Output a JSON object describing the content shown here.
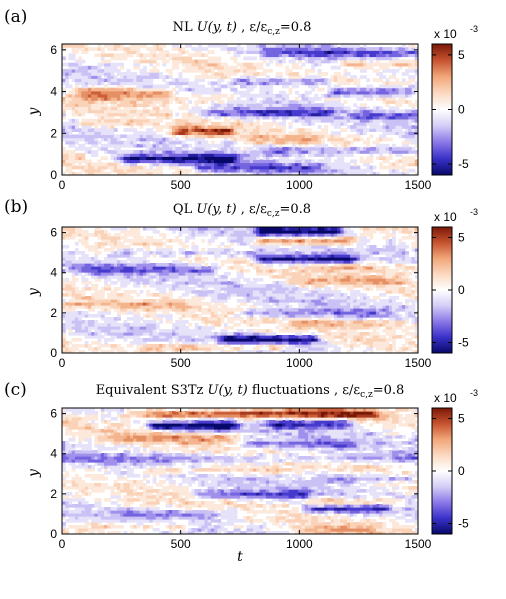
{
  "figure": {
    "xlabel": "t",
    "ylabel": "y",
    "colorbar": {
      "multiplier": "x 10",
      "exponent": "-3",
      "ticks": [
        5,
        0,
        -5
      ],
      "tick_labels": [
        "5",
        "0",
        "-5"
      ],
      "range": [
        -6,
        6
      ],
      "colormap": [
        "#08086b",
        "#3a31c8",
        "#8b78e8",
        "#d4cdf7",
        "#ffffff",
        "#fbd9c1",
        "#f1a779",
        "#c6532f",
        "#7a1808"
      ]
    }
  },
  "panels": [
    {
      "label": "(a)",
      "title": "NL   U(y, t)  ,  ε/ε_{c,z}=0.8",
      "title_parts": [
        "NL   ",
        "U(y, t)",
        "  ,  ε/ε",
        "c,z",
        "=0.8"
      ]
    },
    {
      "label": "(b)",
      "title": "QL   U(y, t)  ,  ε/ε_{c,z}=0.8",
      "title_parts": [
        "QL   ",
        "U(y, t)",
        "  ,  ε/ε",
        "c,z",
        "=0.8"
      ]
    },
    {
      "label": "(c)",
      "title": "Equivalent S3Tz U(y, t) fluctuations , ε/ε_{c,z}=0.8",
      "title_parts": [
        "Equivalent S3Tz ",
        "U(y, t)",
        " fluctuations , ε/ε",
        "c,z",
        "=0.8"
      ]
    }
  ],
  "chart_data": [
    {
      "type": "heatmap",
      "panel": "(a)",
      "title": "NL U(y,t), ε/ε_{c,z}=0.8",
      "xlabel": "",
      "ylabel": "y",
      "xlim": [
        0,
        1500
      ],
      "ylim": [
        0,
        6.28
      ],
      "xticks": [
        0,
        500,
        1000,
        1500
      ],
      "yticks": [
        0,
        2,
        4,
        6
      ],
      "zlim": [
        -6,
        6
      ],
      "zscale": "x 10^-3",
      "jets": [
        {
          "y": 4.0,
          "t_start": 100,
          "t_end": 420,
          "value": 3.5
        },
        {
          "y": 3.7,
          "t_start": 150,
          "t_end": 700,
          "value": 2.0
        },
        {
          "y": 5.3,
          "t_start": 1200,
          "t_end": 1500,
          "value": 3.0
        },
        {
          "y": 2.1,
          "t_start": 480,
          "t_end": 700,
          "value": 4.5
        },
        {
          "y": 2.5,
          "t_start": 100,
          "t_end": 320,
          "value": 2.0
        },
        {
          "y": 1.7,
          "t_start": 800,
          "t_end": 1050,
          "value": 2.0
        },
        {
          "y": 5.9,
          "t_start": 900,
          "t_end": 1500,
          "value": -3.0
        },
        {
          "y": 4.5,
          "t_start": 750,
          "t_end": 1100,
          "value": -3.0
        },
        {
          "y": 4.0,
          "t_start": 1150,
          "t_end": 1450,
          "value": -4.0
        },
        {
          "y": 3.0,
          "t_start": 650,
          "t_end": 1100,
          "value": -3.5
        },
        {
          "y": 2.9,
          "t_start": 1250,
          "t_end": 1500,
          "value": -3.0
        },
        {
          "y": 0.8,
          "t_start": 280,
          "t_end": 700,
          "value": -5.5
        },
        {
          "y": 1.2,
          "t_start": 900,
          "t_end": 1450,
          "value": -3.0
        },
        {
          "y": 0.35,
          "t_start": 600,
          "t_end": 1050,
          "value": -3.0
        }
      ]
    },
    {
      "type": "heatmap",
      "panel": "(b)",
      "title": "QL U(y,t), ε/ε_{c,z}=0.8",
      "xlabel": "",
      "ylabel": "y",
      "xlim": [
        0,
        1500
      ],
      "ylim": [
        0,
        6.28
      ],
      "xticks": [
        0,
        500,
        1000,
        1500
      ],
      "yticks": [
        0,
        2,
        4,
        6
      ],
      "zlim": [
        -6,
        6
      ],
      "zscale": "x 10^-3",
      "jets": [
        {
          "y": 6.1,
          "t_start": 850,
          "t_end": 1150,
          "value": -6.0
        },
        {
          "y": 5.6,
          "t_start": 850,
          "t_end": 1200,
          "value": 4.0
        },
        {
          "y": 4.7,
          "t_start": 850,
          "t_end": 1200,
          "value": -6.0
        },
        {
          "y": 4.3,
          "t_start": 1100,
          "t_end": 1500,
          "value": 2.0
        },
        {
          "y": 5.0,
          "t_start": 250,
          "t_end": 800,
          "value": -2.0
        },
        {
          "y": 4.2,
          "t_start": 100,
          "t_end": 600,
          "value": -3.0
        },
        {
          "y": 3.6,
          "t_start": 1000,
          "t_end": 1400,
          "value": 2.0
        },
        {
          "y": 2.4,
          "t_start": 50,
          "t_end": 500,
          "value": 1.8
        },
        {
          "y": 2.0,
          "t_start": 800,
          "t_end": 1300,
          "value": -2.5
        },
        {
          "y": 0.7,
          "t_start": 700,
          "t_end": 1050,
          "value": -6.0
        },
        {
          "y": 0.3,
          "t_start": 400,
          "t_end": 900,
          "value": 2.5
        },
        {
          "y": 1.5,
          "t_start": 1000,
          "t_end": 1450,
          "value": 2.0
        }
      ]
    },
    {
      "type": "heatmap",
      "panel": "(c)",
      "title": "Equivalent S3Tz U(y,t) fluctuations, ε/ε_{c,z}=0.8",
      "xlabel": "t",
      "ylabel": "y",
      "xlim": [
        0,
        1500
      ],
      "ylim": [
        0,
        6.28
      ],
      "xticks": [
        0,
        500,
        1000,
        1500
      ],
      "yticks": [
        0,
        2,
        4,
        6
      ],
      "zlim": [
        -6,
        6
      ],
      "zscale": "x 10^-3",
      "jets": [
        {
          "y": 6.0,
          "t_start": 400,
          "t_end": 1250,
          "value": 5.5
        },
        {
          "y": 5.4,
          "t_start": 400,
          "t_end": 700,
          "value": -6.0
        },
        {
          "y": 5.5,
          "t_start": 900,
          "t_end": 1200,
          "value": -4.0
        },
        {
          "y": 4.8,
          "t_start": 250,
          "t_end": 700,
          "value": 2.5
        },
        {
          "y": 4.5,
          "t_start": 800,
          "t_end": 1200,
          "value": -3.0
        },
        {
          "y": 3.8,
          "t_start": 0,
          "t_end": 1500,
          "value": -2.0
        },
        {
          "y": 3.2,
          "t_start": 350,
          "t_end": 900,
          "value": 2.0
        },
        {
          "y": 2.8,
          "t_start": 1100,
          "t_end": 1450,
          "value": -2.5
        },
        {
          "y": 2.0,
          "t_start": 600,
          "t_end": 1000,
          "value": -3.5
        },
        {
          "y": 1.6,
          "t_start": 1050,
          "t_end": 1400,
          "value": 3.0
        },
        {
          "y": 1.3,
          "t_start": 1050,
          "t_end": 1350,
          "value": -4.5
        },
        {
          "y": 1.0,
          "t_start": 300,
          "t_end": 700,
          "value": -2.5
        },
        {
          "y": 0.4,
          "t_start": 100,
          "t_end": 500,
          "value": 2.0
        },
        {
          "y": 0.2,
          "t_start": 1000,
          "t_end": 1300,
          "value": 2.5
        }
      ]
    }
  ]
}
